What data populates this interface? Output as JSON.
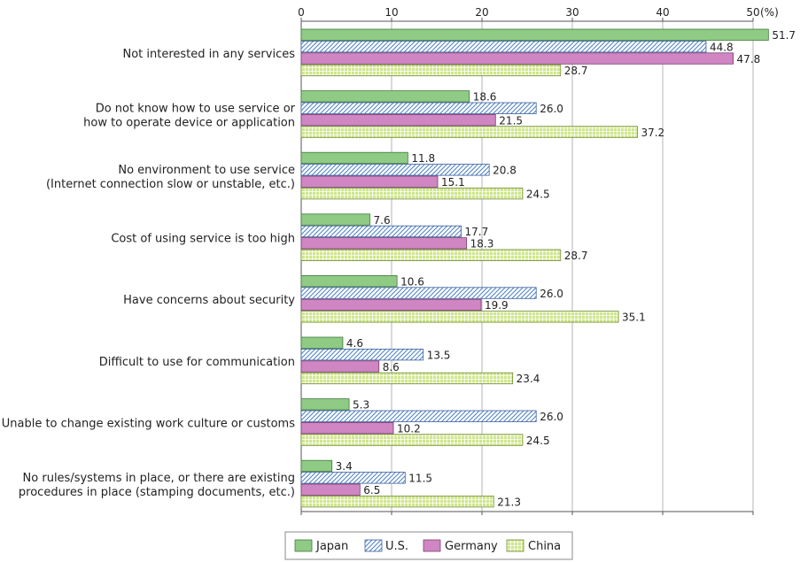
{
  "chart_data": {
    "type": "bar",
    "orientation": "horizontal",
    "unit_label": "(%)",
    "xlim": [
      0,
      50
    ],
    "xticks": [
      0,
      10,
      20,
      30,
      40,
      50
    ],
    "grid": true,
    "legend_position": "bottom",
    "categories": [
      [
        "Not interested in any services"
      ],
      [
        "Do not know how to use service or",
        "how to operate device or application"
      ],
      [
        "No environment to use service",
        "(Internet connection slow or unstable, etc.)"
      ],
      [
        "Cost of using service is too high"
      ],
      [
        "Have concerns about security"
      ],
      [
        "Difficult to use for communication"
      ],
      [
        "Unable to change existing work culture or customs"
      ],
      [
        "No rules/systems in place, or there are existing",
        "procedures in place (stamping documents, etc.)"
      ]
    ],
    "series": [
      {
        "name": "Japan",
        "color": "#8fcb84",
        "pattern": "solid",
        "values": [
          51.7,
          18.6,
          11.8,
          7.6,
          10.6,
          4.6,
          5.3,
          3.4
        ]
      },
      {
        "name": "U.S.",
        "color": "#5b8fd0",
        "pattern": "diagonal-hatch",
        "values": [
          44.8,
          26.0,
          20.8,
          17.7,
          26.0,
          13.5,
          26.0,
          11.5
        ]
      },
      {
        "name": "Germany",
        "color": "#cf86c2",
        "pattern": "solid",
        "values": [
          47.8,
          21.5,
          15.1,
          18.3,
          19.9,
          8.6,
          10.2,
          6.5
        ]
      },
      {
        "name": "China",
        "color": "#c2df7a",
        "pattern": "grid",
        "values": [
          28.7,
          37.2,
          24.5,
          28.7,
          35.1,
          23.4,
          24.5,
          21.3
        ]
      }
    ]
  }
}
